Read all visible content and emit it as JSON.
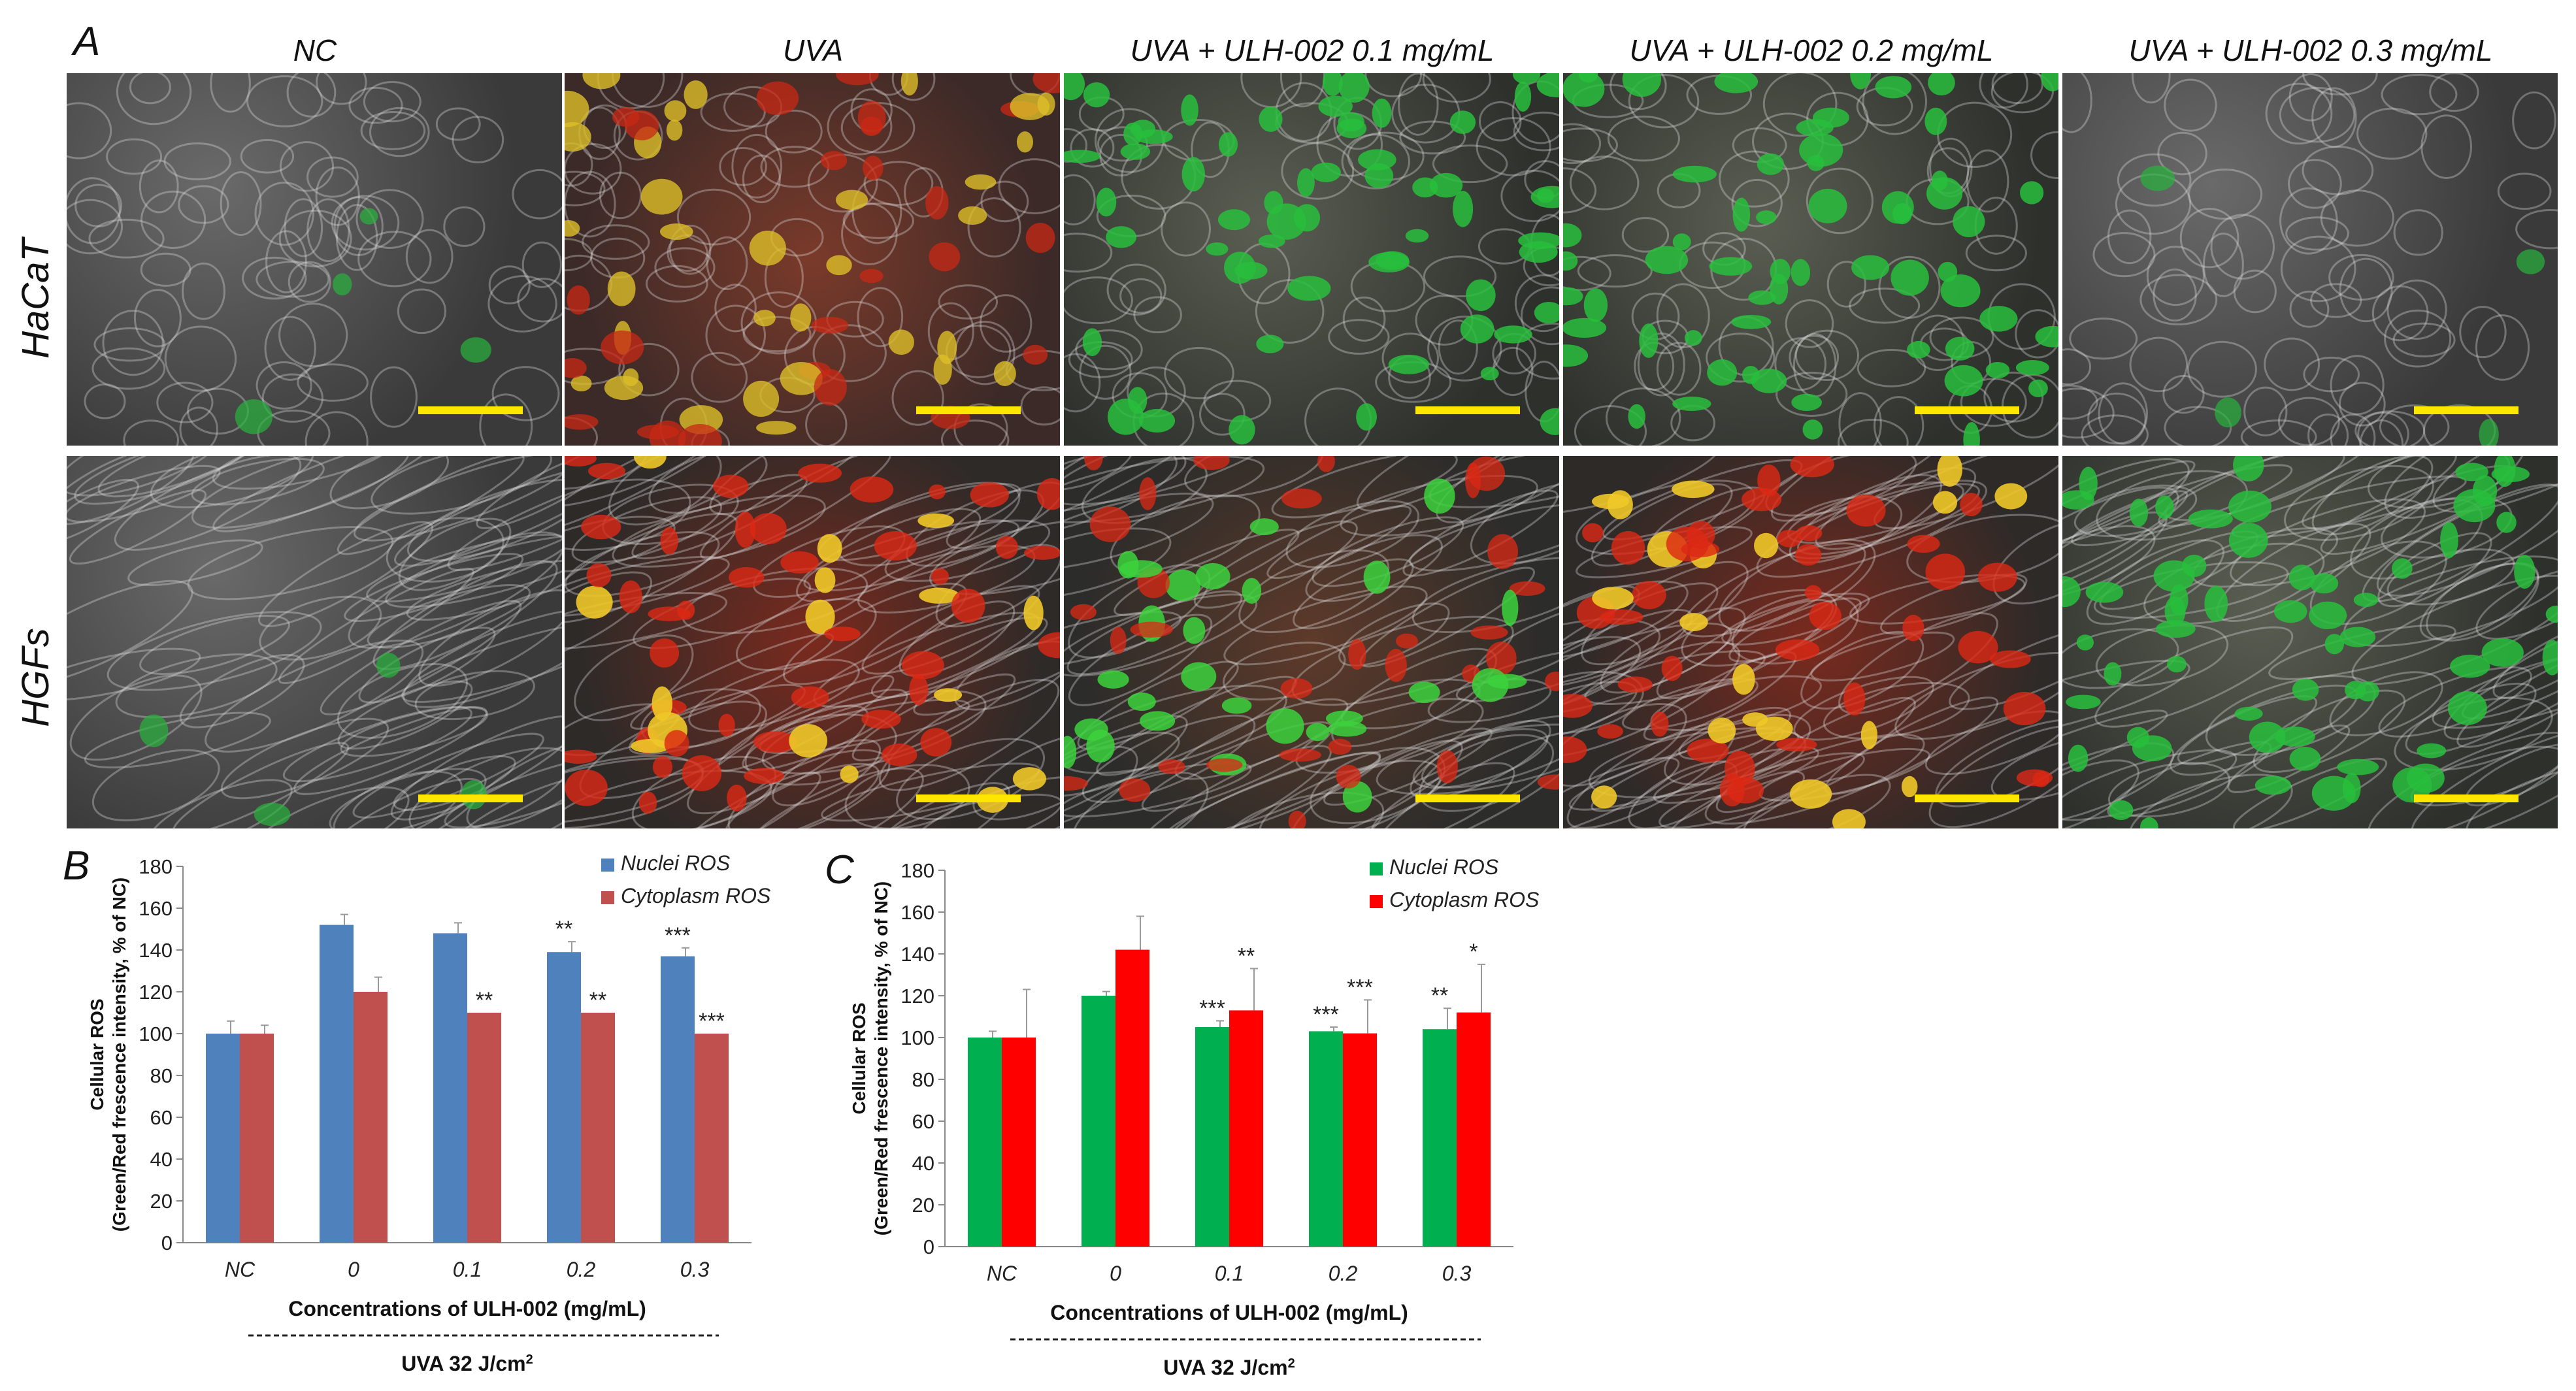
{
  "figure": {
    "panel_letters": {
      "a": "A",
      "b": "B",
      "c": "C"
    },
    "columns": [
      "NC",
      "UVA",
      "UVA + ULH-002 0.1 mg/mL",
      "UVA + ULH-002 0.2 mg/mL",
      "UVA + ULH-002 0.3 mg/mL"
    ],
    "rows": [
      "HaCaT",
      "HGFs"
    ],
    "image_tints": [
      [
        "gray",
        "red-yellow",
        "green",
        "green",
        "gray"
      ],
      [
        "gray",
        "red",
        "red-green",
        "red",
        "green"
      ]
    ]
  },
  "chart_data": [
    {
      "type": "bar",
      "panel": "B",
      "categories": [
        "NC",
        "0",
        "0.1",
        "0.2",
        "0.3"
      ],
      "series": [
        {
          "name": "Nuclei ROS",
          "color": "#4f81bd",
          "values": [
            100,
            152,
            148,
            139,
            137
          ],
          "errors": [
            6,
            5,
            5,
            5,
            4
          ],
          "sig": [
            "",
            "",
            "",
            "**",
            "***"
          ]
        },
        {
          "name": "Cytoplasm ROS",
          "color": "#c0504d",
          "values": [
            100,
            120,
            110,
            110,
            100
          ],
          "errors": [
            4,
            7,
            0,
            0,
            0
          ],
          "sig": [
            "",
            "",
            "**",
            "**",
            "***"
          ]
        }
      ],
      "ylabel_line1": "Cellular ROS",
      "ylabel_line2": "(Green/Red frescence intensity, % of NC)",
      "xlabel": "Concentrations of ULH-002 (mg/mL)",
      "footer": "UVA 32 J/cm",
      "footer_sup": "2",
      "ylim": [
        0,
        180
      ],
      "yticks": [
        0,
        20,
        40,
        60,
        80,
        100,
        120,
        140,
        160,
        180
      ],
      "legend_position": "top-right"
    },
    {
      "type": "bar",
      "panel": "C",
      "categories": [
        "NC",
        "0",
        "0.1",
        "0.2",
        "0.3"
      ],
      "series": [
        {
          "name": "Nuclei ROS",
          "color": "#00b050",
          "values": [
            100,
            120,
            105,
            103,
            104
          ],
          "errors": [
            3,
            2,
            3,
            2,
            10
          ],
          "sig": [
            "",
            "",
            "***",
            "***",
            "**"
          ]
        },
        {
          "name": "Cytoplasm ROS",
          "color": "#ff0000",
          "values": [
            100,
            142,
            113,
            102,
            112
          ],
          "errors": [
            23,
            16,
            20,
            16,
            23
          ],
          "sig": [
            "",
            "",
            "**",
            "***",
            "*"
          ]
        }
      ],
      "ylabel_line1": "Cellular ROS",
      "ylabel_line2": "(Green/Red frescence intensity, % of NC)",
      "xlabel": "Concentrations of ULH-002 (mg/mL)",
      "footer": "UVA 32 J/cm",
      "footer_sup": "2",
      "ylim": [
        0,
        180
      ],
      "yticks": [
        0,
        20,
        40,
        60,
        80,
        100,
        120,
        140,
        160,
        180
      ],
      "legend_position": "top-right"
    }
  ]
}
